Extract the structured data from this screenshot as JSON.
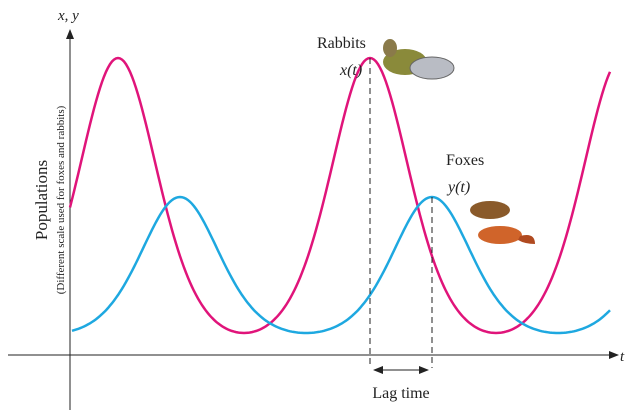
{
  "axes": {
    "y_label": "x, y",
    "x_label": "t"
  },
  "y_title": {
    "main": "Populations",
    "note": "(Different scale used for foxes and rabbits)"
  },
  "rabbits": {
    "name": "Rabbits",
    "symbol": "x(t)"
  },
  "foxes": {
    "name": "Foxes",
    "symbol": "y(t)"
  },
  "lag": "Lag time"
}
